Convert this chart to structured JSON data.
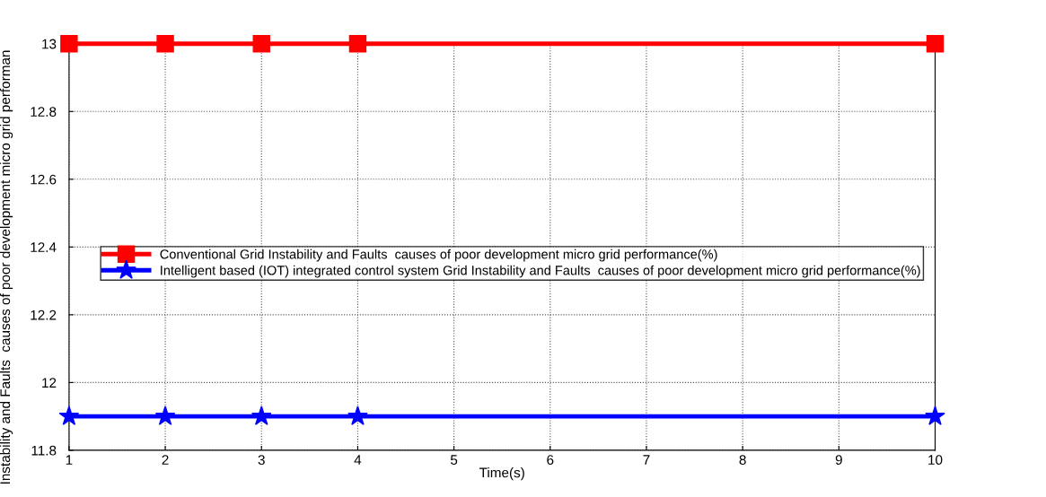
{
  "chart_data": {
    "type": "line",
    "xlabel": "Time(s)",
    "ylabel": "Instability and Faults  causes of poor development micro grid performan",
    "x": [
      1,
      2,
      3,
      4,
      10
    ],
    "series": [
      {
        "name": "Conventional Grid Instability and Faults  causes of poor development micro grid performance(%)",
        "color": "#ff0000",
        "values": [
          13,
          13,
          13,
          13,
          13
        ],
        "marker": "square"
      },
      {
        "name": "Intelligent based (IOT) integrated control system Grid Instability and Faults  causes of poor development micro grid performance(%)",
        "color": "#0000ff",
        "values": [
          11.9,
          11.9,
          11.9,
          11.9,
          11.9
        ],
        "marker": "star"
      }
    ],
    "xlim": [
      1,
      10
    ],
    "xticks": [
      1,
      2,
      3,
      4,
      5,
      6,
      7,
      8,
      9,
      10
    ],
    "ylim": [
      11.8,
      13
    ],
    "yticks": [
      11.8,
      12,
      12.2,
      12.4,
      12.6,
      12.8,
      13
    ],
    "grid": true,
    "legend": "center left",
    "line_style": "solid"
  }
}
